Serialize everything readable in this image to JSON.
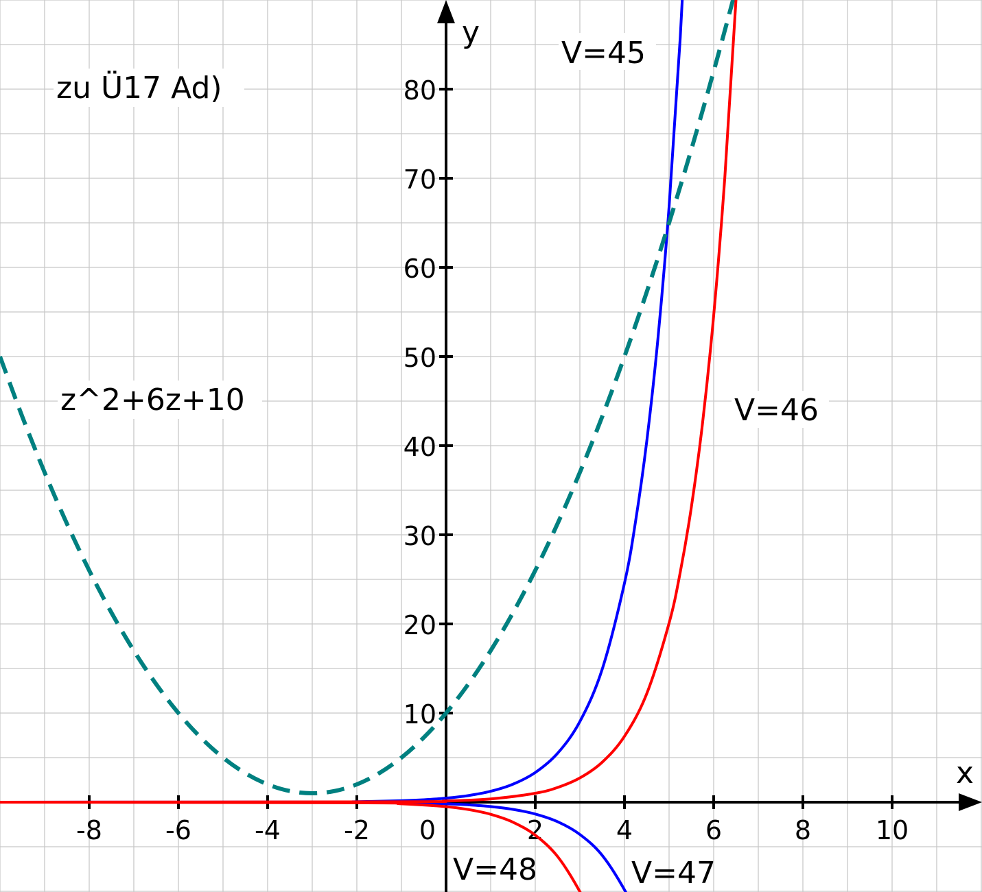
{
  "chart_data": {
    "type": "line",
    "title": "zu Ü17 Ad)",
    "xlabel": "x",
    "ylabel": "y",
    "xlim": [
      -10,
      12
    ],
    "ylim": [
      -10,
      90
    ],
    "grid": true,
    "grid_step": {
      "x": 1,
      "y": 5
    },
    "x_ticks": [
      -8,
      -6,
      -4,
      -2,
      0,
      2,
      4,
      6,
      8,
      10
    ],
    "x_tick_labels": [
      "-8",
      "-6",
      "-4",
      "-2",
      "0",
      "2",
      "4",
      "6",
      "8",
      "10"
    ],
    "y_ticks": [
      10,
      20,
      30,
      40,
      50,
      60,
      70,
      80
    ],
    "y_tick_labels": [
      "10",
      "20",
      "30",
      "40",
      "50",
      "60",
      "70",
      "80"
    ],
    "annotations": {
      "parabola": "z^2+6z+10",
      "v45": "V=45",
      "v46": "V=46",
      "v47": "V=47",
      "v48": "V=48"
    },
    "series": [
      {
        "name": "z^2+6z+10",
        "color": "#008080",
        "style": "dashed",
        "x": [
          -10,
          -9.5,
          -9,
          -8.5,
          -8,
          -7.5,
          -7,
          -6.5,
          -6,
          -5.5,
          -5,
          -4.5,
          -4,
          -3.5,
          -3,
          -2.5,
          -2,
          -1.5,
          -1,
          -0.5,
          0,
          0.5,
          1,
          1.5,
          2,
          2.5,
          3,
          3.5,
          4,
          4.5,
          5,
          5.5,
          6,
          6.5
        ],
        "y": [
          50,
          43.25,
          37,
          31.25,
          26,
          21.25,
          17,
          13.25,
          10,
          7.25,
          5,
          3.25,
          2,
          1.25,
          1,
          1.25,
          2,
          3.25,
          5,
          7.25,
          10,
          13.25,
          17,
          21.25,
          26,
          31.25,
          37,
          43.25,
          50,
          57.25,
          65,
          73.25,
          82,
          91.25
        ]
      },
      {
        "name": "V=45",
        "color": "#0000ff",
        "style": "solid",
        "x": [
          -10,
          -3,
          -2,
          -1,
          -0.5,
          0,
          0.5,
          1,
          1.5,
          2,
          2.5,
          3,
          3.5,
          4,
          4.25,
          4.5,
          4.75,
          5,
          5.25,
          5.5
        ],
        "y": [
          0,
          0.022,
          0.061,
          0.166,
          0.273,
          0.45,
          0.742,
          1.223,
          2.017,
          3.325,
          5.482,
          9.039,
          14.9,
          24.57,
          31.55,
          40.51,
          52.0,
          66.79,
          85.76,
          110.1
        ]
      },
      {
        "name": "V=47",
        "color": "#0000ff",
        "style": "solid",
        "x": [
          -10,
          -2,
          -1,
          0,
          0.5,
          1,
          1.5,
          2,
          2.5,
          3,
          3.5,
          4,
          4.25
        ],
        "y": [
          0,
          -0.024,
          -0.066,
          -0.18,
          -0.297,
          -0.489,
          -0.807,
          -1.33,
          -2.19,
          -3.62,
          -5.96,
          -9.83,
          -12.62
        ]
      },
      {
        "name": "V=46",
        "color": "#ff0000",
        "style": "solid",
        "x": [
          -10,
          -1,
          0,
          1,
          2,
          2.5,
          3,
          3.5,
          4,
          4.5,
          5,
          5.25,
          5.5,
          5.75,
          6,
          6.25,
          6.5,
          6.75
        ],
        "y": [
          0,
          0.05,
          0.135,
          0.368,
          1,
          1.649,
          2.718,
          4.482,
          7.389,
          12.18,
          20.09,
          25.79,
          33.12,
          42.52,
          54.6,
          70.1,
          90.02,
          115.6
        ]
      },
      {
        "name": "V=48",
        "color": "#ff0000",
        "style": "solid",
        "x": [
          -10,
          -2,
          -1,
          0,
          0.5,
          1,
          1.5,
          2,
          2.5,
          3,
          3.25
        ],
        "y": [
          0,
          -0.068,
          -0.184,
          -0.5,
          -0.824,
          -1.359,
          -2.241,
          -3.695,
          -6.091,
          -10.04,
          -12.9
        ]
      }
    ]
  }
}
